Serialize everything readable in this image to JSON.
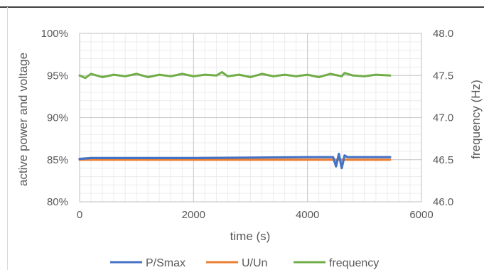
{
  "chart_data": {
    "type": "line",
    "title": "",
    "xlabel": "time (s)",
    "ylabel_left": "active power and voltage",
    "ylabel_right": "frequency (Hz)",
    "xlim": [
      0,
      6000
    ],
    "ylim_left": [
      80,
      100
    ],
    "ylim_right": [
      46.0,
      48.0
    ],
    "x_ticks": [
      "0",
      "2000",
      "4000",
      "6000"
    ],
    "y_left_ticks": [
      "80%",
      "85%",
      "90%",
      "95%",
      "100%"
    ],
    "y_right_ticks": [
      "46.0",
      "46.5",
      "47.0",
      "47.5",
      "48.0"
    ],
    "grid": true,
    "legend_position": "bottom",
    "series": [
      {
        "name": "P/Smax",
        "axis": "left",
        "color": "#4472C4",
        "points": [
          [
            0,
            85.1
          ],
          [
            200,
            85.2
          ],
          [
            1000,
            85.2
          ],
          [
            2000,
            85.2
          ],
          [
            3000,
            85.25
          ],
          [
            4000,
            85.3
          ],
          [
            4450,
            85.3
          ],
          [
            4500,
            84.2
          ],
          [
            4550,
            85.7
          ],
          [
            4600,
            84.0
          ],
          [
            4650,
            85.5
          ],
          [
            4700,
            85.3
          ],
          [
            5000,
            85.3
          ],
          [
            5450,
            85.3
          ]
        ]
      },
      {
        "name": "U/Un",
        "axis": "left",
        "color": "#ED7D31",
        "points": [
          [
            0,
            85.0
          ],
          [
            1000,
            85.0
          ],
          [
            2000,
            85.0
          ],
          [
            3000,
            85.0
          ],
          [
            4000,
            85.0
          ],
          [
            5000,
            85.0
          ],
          [
            5450,
            85.0
          ]
        ]
      },
      {
        "name": "frequency",
        "axis": "right",
        "color": "#70AD47",
        "points": [
          [
            0,
            47.5
          ],
          [
            100,
            47.47
          ],
          [
            200,
            47.52
          ],
          [
            400,
            47.48
          ],
          [
            600,
            47.51
          ],
          [
            800,
            47.49
          ],
          [
            1000,
            47.52
          ],
          [
            1200,
            47.48
          ],
          [
            1400,
            47.51
          ],
          [
            1600,
            47.49
          ],
          [
            1800,
            47.52
          ],
          [
            2000,
            47.49
          ],
          [
            2200,
            47.51
          ],
          [
            2400,
            47.5
          ],
          [
            2500,
            47.54
          ],
          [
            2600,
            47.49
          ],
          [
            2800,
            47.51
          ],
          [
            3000,
            47.48
          ],
          [
            3200,
            47.52
          ],
          [
            3400,
            47.49
          ],
          [
            3600,
            47.51
          ],
          [
            3800,
            47.49
          ],
          [
            4000,
            47.51
          ],
          [
            4200,
            47.48
          ],
          [
            4400,
            47.52
          ],
          [
            4600,
            47.49
          ],
          [
            4650,
            47.53
          ],
          [
            4800,
            47.5
          ],
          [
            5000,
            47.49
          ],
          [
            5200,
            47.51
          ],
          [
            5450,
            47.5
          ]
        ]
      }
    ]
  }
}
